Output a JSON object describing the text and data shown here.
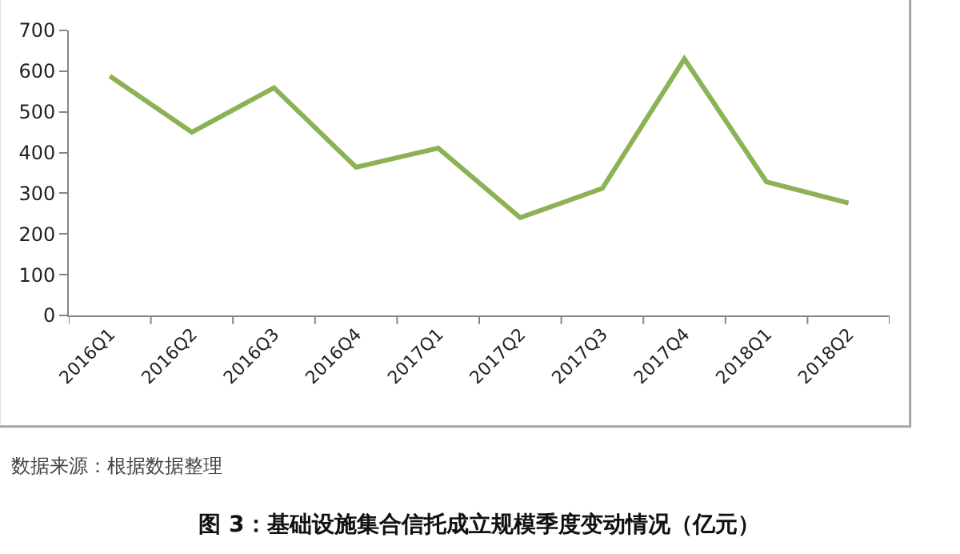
{
  "chart_data": {
    "type": "line",
    "title": "图 3：基础设施集合信托成立规模季度变动情况（亿元）",
    "annotations": [
      "数据来源：根据数据整理"
    ],
    "categories": [
      "2016Q1",
      "2016Q2",
      "2016Q3",
      "2016Q4",
      "2017Q1",
      "2017Q2",
      "2017Q3",
      "2017Q4",
      "2018Q1",
      "2018Q2"
    ],
    "series": [
      {
        "color": "#8db255",
        "values": [
          588,
          450,
          559,
          364,
          411,
          240,
          312,
          630,
          328,
          276
        ]
      }
    ],
    "ylim": [
      0,
      700
    ],
    "yticks": [
      0,
      100,
      200,
      300,
      400,
      500,
      600,
      700
    ],
    "grid": false,
    "marker": "none",
    "line_style": "solid"
  }
}
